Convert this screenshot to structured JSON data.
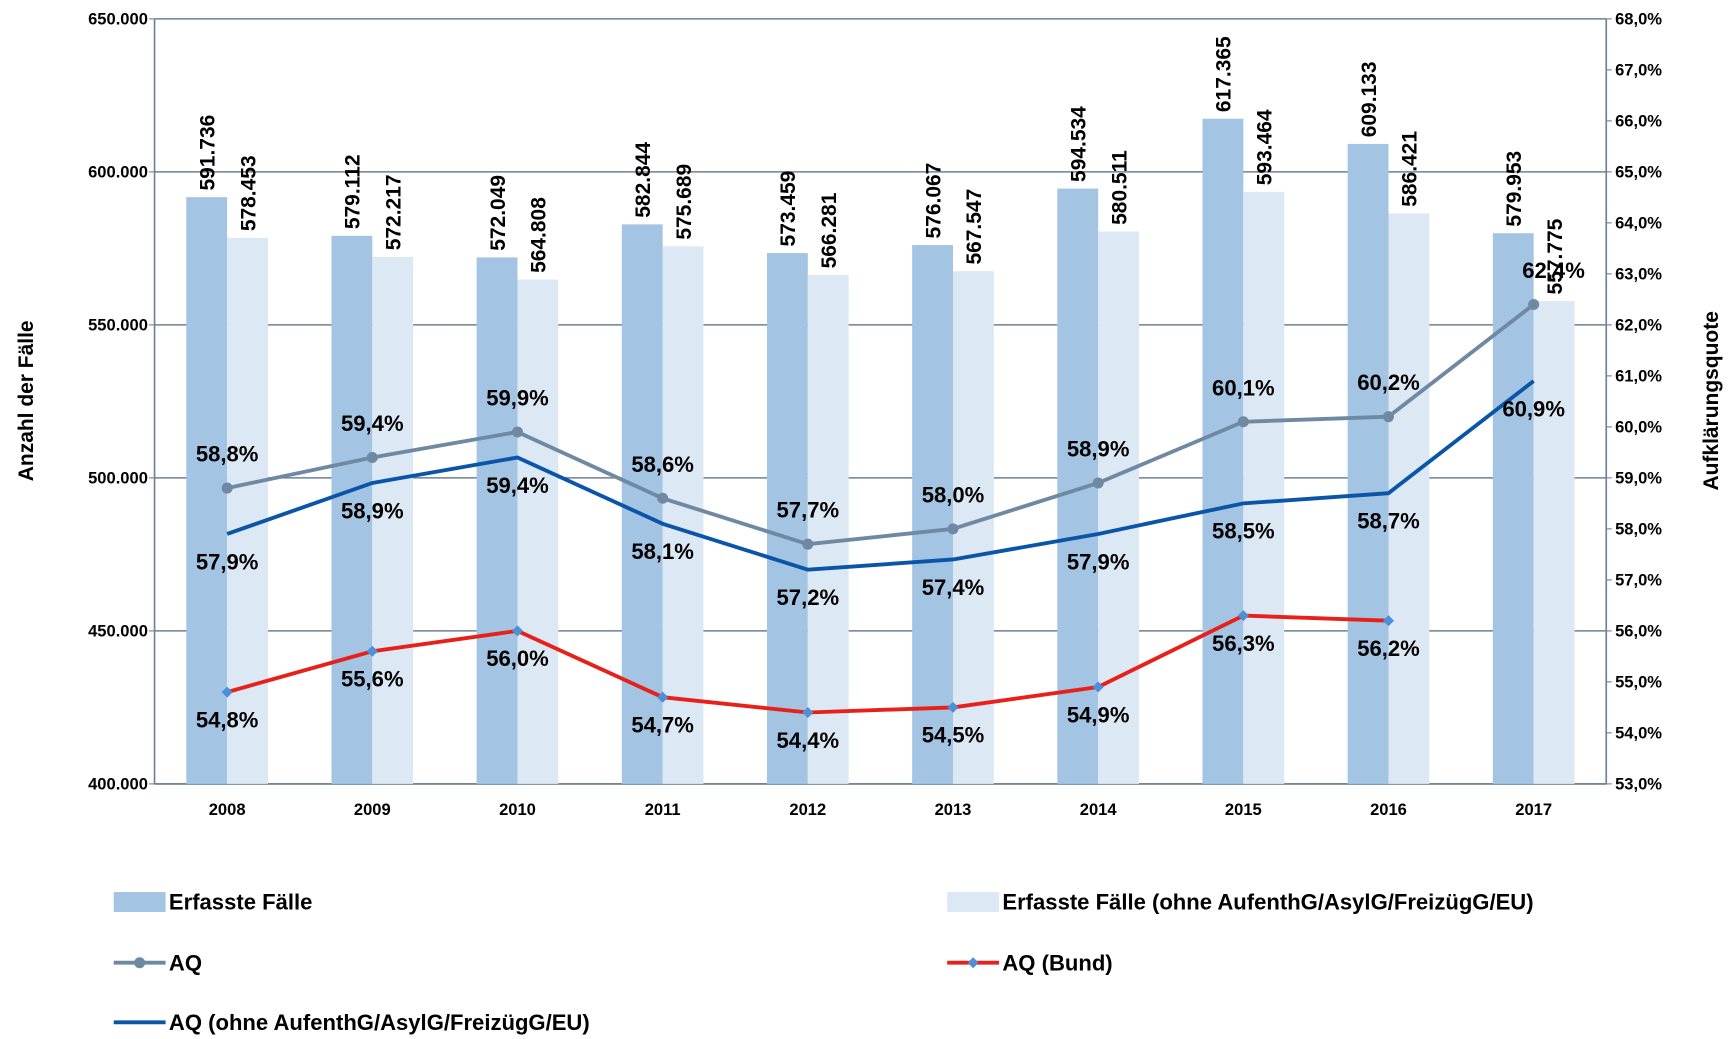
{
  "chart_data": {
    "type": "bar",
    "categories": [
      "2008",
      "2009",
      "2010",
      "2011",
      "2012",
      "2013",
      "2014",
      "2015",
      "2016",
      "2017"
    ],
    "y_label": "Anzahl der Fälle",
    "y2_label": "Aufklärungsquote",
    "ylim": [
      400000,
      650000
    ],
    "yticks": [
      {
        "value": 400000,
        "label": "400.000"
      },
      {
        "value": 450000,
        "label": "450.000"
      },
      {
        "value": 500000,
        "label": "500.000"
      },
      {
        "value": 550000,
        "label": "550.000"
      },
      {
        "value": 600000,
        "label": "600.000"
      },
      {
        "value": 650000,
        "label": "650.000"
      }
    ],
    "y2lim": [
      53,
      68
    ],
    "y2ticks": [
      {
        "value": 53,
        "label": "53,0%"
      },
      {
        "value": 54,
        "label": "54,0%"
      },
      {
        "value": 55,
        "label": "55,0%"
      },
      {
        "value": 56,
        "label": "56,0%"
      },
      {
        "value": 57,
        "label": "57,0%"
      },
      {
        "value": 58,
        "label": "58,0%"
      },
      {
        "value": 59,
        "label": "59,0%"
      },
      {
        "value": 60,
        "label": "60,0%"
      },
      {
        "value": 61,
        "label": "61,0%"
      },
      {
        "value": 62,
        "label": "62,0%"
      },
      {
        "value": 63,
        "label": "63,0%"
      },
      {
        "value": 64,
        "label": "64,0%"
      },
      {
        "value": 65,
        "label": "65,0%"
      },
      {
        "value": 66,
        "label": "66,0%"
      },
      {
        "value": 67,
        "label": "67,0%"
      },
      {
        "value": 68,
        "label": "68,0%"
      }
    ],
    "grid": true,
    "series": [
      {
        "name": "Erfasste Fälle",
        "type": "bar",
        "color": "#a3c4e2",
        "values": [
          591736,
          579112,
          572049,
          582844,
          573459,
          576067,
          594534,
          617365,
          609133,
          579953
        ],
        "value_labels": [
          "591.736",
          "579.112",
          "572.049",
          "582.844",
          "573.459",
          "576.067",
          "594.534",
          "617.365",
          "609.133",
          "579.953"
        ]
      },
      {
        "name": "Erfasste Fälle (ohne AufenthG/AsylG/FreizügG/EU)",
        "type": "bar",
        "color": "#dde8f5",
        "values": [
          578453,
          572217,
          564808,
          575689,
          566281,
          567547,
          580511,
          593464,
          586421,
          557775
        ],
        "value_labels": [
          "578.453",
          "572.217",
          "564.808",
          "575.689",
          "566.281",
          "567.547",
          "580.511",
          "593.464",
          "586.421",
          "557.775"
        ]
      },
      {
        "name": "AQ",
        "type": "line",
        "axis": "y2",
        "color": "#6f89a3",
        "marker": "circle",
        "values": [
          58.8,
          59.4,
          59.9,
          58.6,
          57.7,
          58.0,
          58.9,
          60.1,
          60.2,
          62.4
        ],
        "value_labels": [
          "58,8%",
          "59,4%",
          "59,9%",
          "58,6%",
          "57,7%",
          "58,0%",
          "58,9%",
          "60,1%",
          "60,2%",
          "62,4%"
        ]
      },
      {
        "name": "AQ (Bund)",
        "type": "line",
        "axis": "y2",
        "color": "#e8201a",
        "marker": "diamond",
        "values": [
          54.8,
          55.6,
          56.0,
          54.7,
          54.4,
          54.5,
          54.9,
          56.3,
          56.2,
          null
        ],
        "value_labels": [
          "54,8%",
          "55,6%",
          "56,0%",
          "54,7%",
          "54,4%",
          "54,5%",
          "54,9%",
          "56,3%",
          "56,2%",
          null
        ]
      },
      {
        "name": "AQ (ohne AufenthG/AsylG/FreizügG/EU)",
        "type": "line",
        "axis": "y2",
        "color": "#0a55a8",
        "marker": "none",
        "values": [
          57.9,
          58.9,
          59.4,
          58.1,
          57.2,
          57.4,
          57.9,
          58.5,
          58.7,
          60.9
        ],
        "value_labels": [
          "57,9%",
          "58,9%",
          "59,4%",
          "58,1%",
          "57,2%",
          "57,4%",
          "57,9%",
          "58,5%",
          "58,7%",
          "60,9%"
        ]
      }
    ]
  }
}
